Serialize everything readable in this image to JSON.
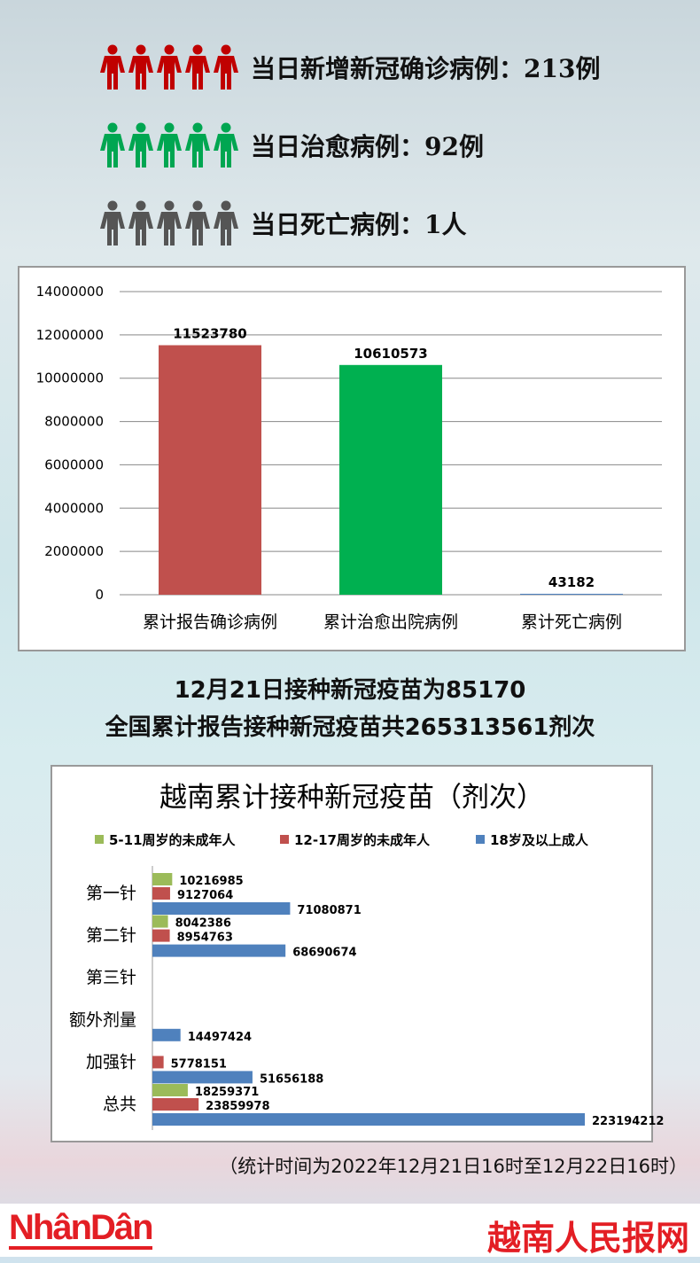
{
  "stats": [
    {
      "label": "当日新增新冠确诊病例：213例",
      "color": "#c00000",
      "icon": "person-icon"
    },
    {
      "label": "当日治愈病例：92例",
      "color": "#00a651",
      "icon": "person-icon"
    },
    {
      "label": "当日死亡病例：1人",
      "color": "#555555",
      "icon": "person-icon"
    }
  ],
  "vaccine": {
    "line1": "12月21日接种新冠疫苗为85170",
    "line2": "全国累计报告接种新冠疫苗共265313561剂次"
  },
  "note": "（统计时间为2022年12月21日16时至12月22日16时）",
  "footer": {
    "logo": "NhânDân",
    "site": "越南人民报网"
  },
  "chart_data": [
    {
      "type": "bar",
      "categories": [
        "累计报告确诊病例",
        "累计治愈出院病例",
        "累计死亡病例"
      ],
      "values": [
        11523780,
        10610573,
        43182
      ],
      "colors": [
        "#c0504d",
        "#00b050",
        "#4f81bd"
      ],
      "ylim": [
        0,
        14000000
      ],
      "yticks": [
        0,
        2000000,
        4000000,
        6000000,
        8000000,
        10000000,
        12000000,
        14000000
      ],
      "grid": true
    },
    {
      "type": "bar",
      "orientation": "horizontal",
      "title": "越南累计接种新冠疫苗（剂次）",
      "legend": "top",
      "categories": [
        "第一针",
        "第二针",
        "第三针",
        "额外剂量",
        "加强针",
        "总共"
      ],
      "series": [
        {
          "name": "5-11周岁的未成年人",
          "color": "#9bbb59",
          "values": [
            10216985,
            8042386,
            null,
            null,
            null,
            18259371
          ]
        },
        {
          "name": "12-17周岁的未成年人",
          "color": "#c0504d",
          "values": [
            9127064,
            8954763,
            null,
            null,
            5778151,
            23859978
          ]
        },
        {
          "name": "18岁及以上成人",
          "color": "#4f81bd",
          "values": [
            71080871,
            68690674,
            null,
            14497424,
            51656188,
            223194212
          ]
        }
      ]
    }
  ]
}
